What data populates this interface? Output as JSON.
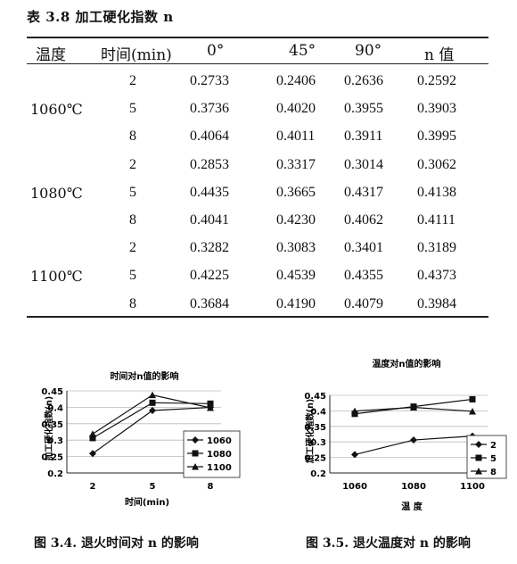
{
  "table": {
    "caption": "表 3.8 加工硬化指数 n",
    "headers": [
      "温度",
      "时间(min)",
      "0°",
      "45°",
      "90°",
      "n 值"
    ],
    "groups": [
      {
        "temperature": "1060℃",
        "rows": [
          {
            "time": "2",
            "v0": "0.2733",
            "v45": "0.2406",
            "v90": "0.2636",
            "n": "0.2592"
          },
          {
            "time": "5",
            "v0": "0.3736",
            "v45": "0.4020",
            "v90": "0.3955",
            "n": "0.3903"
          },
          {
            "time": "8",
            "v0": "0.4064",
            "v45": "0.4011",
            "v90": "0.3911",
            "n": "0.3995"
          }
        ]
      },
      {
        "temperature": "1080℃",
        "rows": [
          {
            "time": "2",
            "v0": "0.2853",
            "v45": "0.3317",
            "v90": "0.3014",
            "n": "0.3062"
          },
          {
            "time": "5",
            "v0": "0.4435",
            "v45": "0.3665",
            "v90": "0.4317",
            "n": "0.4138"
          },
          {
            "time": "8",
            "v0": "0.4041",
            "v45": "0.4230",
            "v90": "0.4062",
            "n": "0.4111"
          }
        ]
      },
      {
        "temperature": "1100℃",
        "rows": [
          {
            "time": "2",
            "v0": "0.3282",
            "v45": "0.3083",
            "v90": "0.3401",
            "n": "0.3189"
          },
          {
            "time": "5",
            "v0": "0.4225",
            "v45": "0.4539",
            "v90": "0.4355",
            "n": "0.4373"
          },
          {
            "time": "8",
            "v0": "0.3684",
            "v45": "0.4190",
            "v90": "0.4079",
            "n": "0.3984"
          }
        ]
      }
    ]
  },
  "chart_data": [
    {
      "type": "line",
      "title": "时间对n值的影响",
      "xlabel": "时间(min)",
      "ylabel": "加工硬化指数(n)",
      "categories": [
        "2",
        "5",
        "8"
      ],
      "ylim": [
        0.2,
        0.45
      ],
      "yticks": [
        "0.2",
        "0.25",
        "0.3",
        "0.35",
        "0.4",
        "0.45"
      ],
      "legend_position": "right",
      "series": [
        {
          "name": "1060",
          "marker": "diamond",
          "values": [
            0.2592,
            0.3903,
            0.3995
          ]
        },
        {
          "name": "1080",
          "marker": "square",
          "values": [
            0.3062,
            0.4138,
            0.4111
          ]
        },
        {
          "name": "1100",
          "marker": "triangle",
          "values": [
            0.3189,
            0.4373,
            0.3984
          ]
        }
      ]
    },
    {
      "type": "line",
      "title": "温度对n值的影响",
      "xlabel": "温  度",
      "ylabel": "加工硬化指数(n)",
      "categories": [
        "1060",
        "1080",
        "1100"
      ],
      "ylim": [
        0.2,
        0.45
      ],
      "yticks": [
        "0.2",
        "0.25",
        "0.3",
        "0.35",
        "0.4",
        "0.45"
      ],
      "legend_position": "right",
      "series": [
        {
          "name": "2",
          "marker": "diamond",
          "values": [
            0.2592,
            0.3062,
            0.3189
          ]
        },
        {
          "name": "5",
          "marker": "square",
          "values": [
            0.3903,
            0.4138,
            0.4373
          ]
        },
        {
          "name": "8",
          "marker": "triangle",
          "values": [
            0.3995,
            0.4111,
            0.3984
          ]
        }
      ]
    }
  ],
  "figures": {
    "left_caption": "图 3.4. 退火时间对 n 的影响",
    "right_caption": "图 3.5. 退火温度对 n 的影响"
  }
}
